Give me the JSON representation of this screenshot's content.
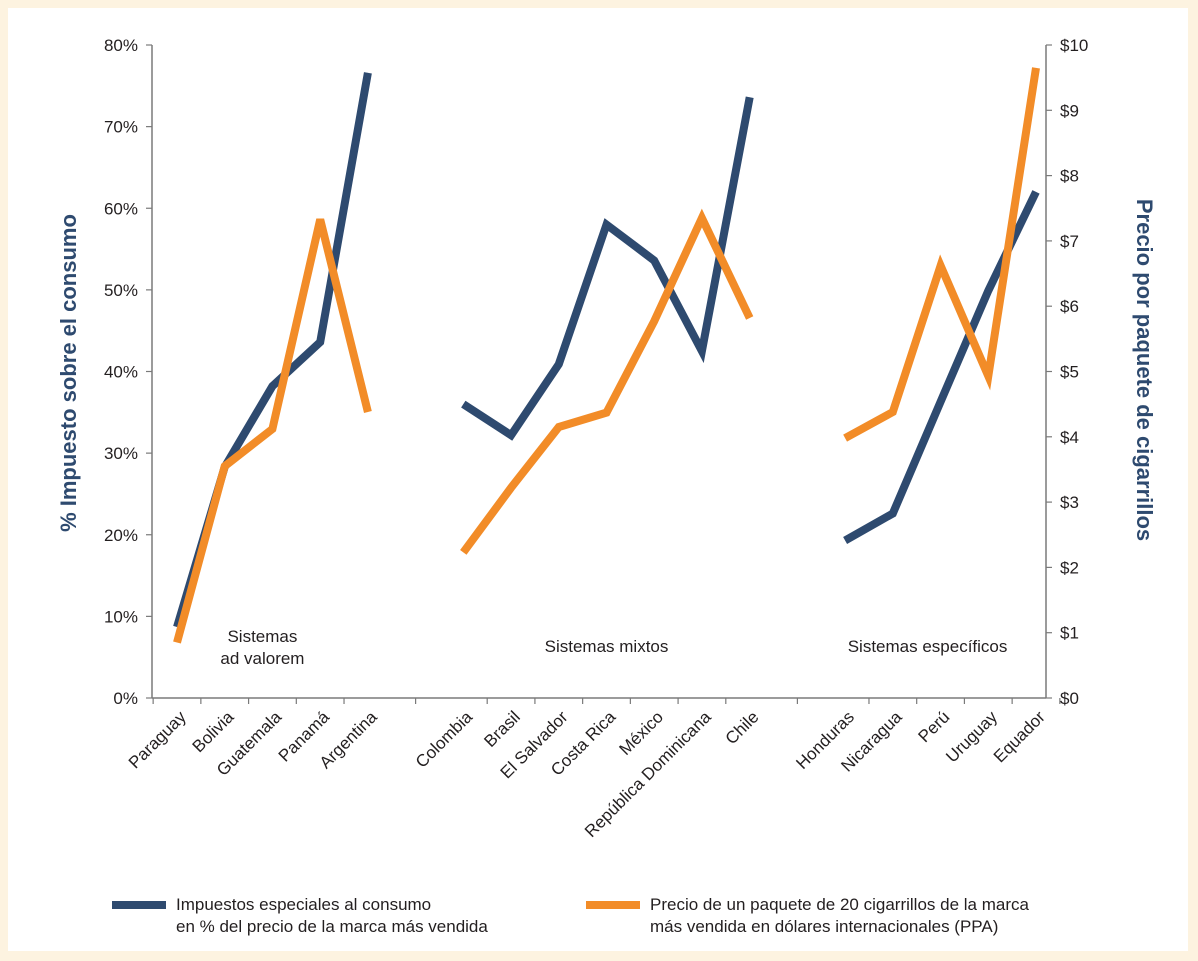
{
  "chart_data": {
    "type": "line",
    "categories": [
      "Paraguay",
      "Bolivia",
      "Guatemala",
      "Panamá",
      "Argentina",
      "Colombia",
      "Brasil",
      "El Salvador",
      "Costa Rica",
      "México",
      "República Dominicana",
      "Chile",
      "Honduras",
      "Nicaragua",
      "Perú",
      "Uruguay",
      "Equador"
    ],
    "groups": [
      {
        "label": "Sistemas\nad valorem",
        "categories": [
          "Paraguay",
          "Bolivia",
          "Guatemala",
          "Panamá",
          "Argentina"
        ]
      },
      {
        "label": "Sistemas mixtos",
        "categories": [
          "Colombia",
          "Brasil",
          "El Salvador",
          "Costa Rica",
          "México",
          "República Dominicana",
          "Chile"
        ]
      },
      {
        "label": "Sistemas específicos",
        "categories": [
          "Honduras",
          "Nicaragua",
          "Perú",
          "Uruguay",
          "Equador"
        ]
      }
    ],
    "series": [
      {
        "name": "Impuestos especiales al consumo\nen % del precio de la marca más vendida",
        "axis": "left",
        "color": "#2e4a6f",
        "values": [
          8.7,
          28.3,
          38.2,
          43.6,
          76.6,
          36.0,
          32.2,
          40.9,
          58.0,
          53.6,
          42.5,
          73.6,
          19.3,
          22.6,
          36.3,
          49.9,
          62.0
        ]
      },
      {
        "name": "Precio de un paquete de 20 cigarrillos de la marca\nmás vendida en dólares internacionales (PPA)",
        "axis": "right",
        "color": "#f28c28",
        "values": [
          0.85,
          3.55,
          4.12,
          7.33,
          4.38,
          2.23,
          3.22,
          4.15,
          4.37,
          5.77,
          7.35,
          5.82,
          3.98,
          4.38,
          6.62,
          4.93,
          9.65
        ]
      }
    ],
    "y_left": {
      "label": "% Impuesto sobre el consumo",
      "ylim": [
        0,
        80
      ],
      "ticks": [
        "0%",
        "10%",
        "20%",
        "30%",
        "40%",
        "50%",
        "60%",
        "70%",
        "80%"
      ]
    },
    "y_right": {
      "label": "Precio por paquete de cigarrillos",
      "ylim": [
        0,
        10
      ],
      "ticks": [
        "$0",
        "$1",
        "$2",
        "$3",
        "$4",
        "$5",
        "$6",
        "$7",
        "$8",
        "$9",
        "$10"
      ]
    },
    "grid": false,
    "legend_position": "bottom",
    "axis_title_color": "#2e4a6f",
    "axis_color": "#7a7a7a"
  }
}
